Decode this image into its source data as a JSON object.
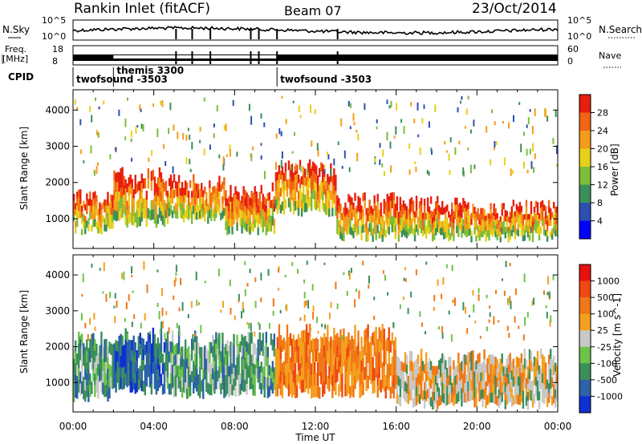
{
  "header": {
    "station": "Rankin Inlet (fitACF)",
    "beam": "Beam 07",
    "date": "23/Oct/2014"
  },
  "top_panels": {
    "nsky_label": "N.Sky",
    "nsearch_label": "N.Search",
    "nsky_ticks": [
      "10^5",
      "10^0"
    ],
    "nsearch_ticks": [
      "10^5",
      "10^0"
    ],
    "freq_label_1": "Freq.",
    "freq_label_2": "[MHz]",
    "freq_ticks": [
      "18",
      "8"
    ],
    "nave_label": "Nave",
    "nave_ticks": [
      "60",
      "0"
    ],
    "cpid_label": "CPID",
    "cpid_segments": [
      {
        "name": "twofsound -3503",
        "start_h": 0.0,
        "end_h": 2.0
      },
      {
        "name": "themis 3300",
        "start_h": 2.0,
        "end_h": 10.1
      },
      {
        "name": "twofsound -3503",
        "start_h": 10.1,
        "end_h": 24.0
      }
    ]
  },
  "chart_data": [
    {
      "type": "heatmap",
      "panel": "power",
      "ylabel": "Slant Range [km]",
      "xlabel": "Time UT",
      "x_ticks": [
        "00:00",
        "04:00",
        "08:00",
        "12:00",
        "16:00",
        "20:00",
        "00:00"
      ],
      "xlim_hours": [
        0,
        24
      ],
      "y_ticks": [
        "1000",
        "2000",
        "3000",
        "4000"
      ],
      "ylim_km": [
        180,
        4560
      ],
      "colorbar": {
        "label": "Power [dB]",
        "ticks": [
          "4",
          "8",
          "12",
          "16",
          "20",
          "24",
          "28"
        ],
        "colors": [
          "#0000ff",
          "#2d4fb0",
          "#3b8f5a",
          "#7dbd3a",
          "#e8d01a",
          "#f59c1a",
          "#f06414",
          "#e81e0e"
        ]
      },
      "echo_bands": [
        {
          "start_h": 0.0,
          "end_h": 2.0,
          "low_km": 700,
          "high_km": 1600
        },
        {
          "start_h": 2.0,
          "end_h": 4.5,
          "low_km": 900,
          "high_km": 2200
        },
        {
          "start_h": 4.5,
          "end_h": 7.5,
          "low_km": 1000,
          "high_km": 2000
        },
        {
          "start_h": 7.5,
          "end_h": 10.0,
          "low_km": 700,
          "high_km": 1800
        },
        {
          "start_h": 10.0,
          "end_h": 13.0,
          "low_km": 1200,
          "high_km": 2400
        },
        {
          "start_h": 13.0,
          "end_h": 16.0,
          "low_km": 500,
          "high_km": 1500
        },
        {
          "start_h": 16.0,
          "end_h": 20.0,
          "low_km": 500,
          "high_km": 1400
        },
        {
          "start_h": 20.0,
          "end_h": 24.0,
          "low_km": 500,
          "high_km": 1300
        }
      ]
    },
    {
      "type": "heatmap",
      "panel": "velocity",
      "ylabel": "Slant Range [km]",
      "xlabel": "Time UT",
      "x_ticks": [
        "00:00",
        "04:00",
        "08:00",
        "12:00",
        "16:00",
        "20:00",
        "00:00"
      ],
      "xlim_hours": [
        0,
        24
      ],
      "y_ticks": [
        "1000",
        "2000",
        "3000",
        "4000"
      ],
      "ylim_km": [
        180,
        4560
      ],
      "colorbar": {
        "label": "Velocity [m s^-1]",
        "ticks": [
          "1000",
          "500",
          "100",
          "25",
          "-25",
          "-100",
          "-500",
          "-1000"
        ],
        "colors": [
          "#1030d0",
          "#2c62a8",
          "#3b8f5a",
          "#6cc44a",
          "#c8c8c8",
          "#f4a020",
          "#f07818",
          "#f04812",
          "#e81010"
        ]
      },
      "echo_bands": [
        {
          "start_h": 0.0,
          "end_h": 2.0,
          "low_km": 600,
          "high_km": 2200,
          "dominant": "green"
        },
        {
          "start_h": 2.0,
          "end_h": 4.5,
          "low_km": 800,
          "high_km": 2300,
          "dominant": "blue"
        },
        {
          "start_h": 4.5,
          "end_h": 10.0,
          "low_km": 700,
          "high_km": 2200,
          "dominant": "green"
        },
        {
          "start_h": 10.0,
          "end_h": 16.0,
          "low_km": 700,
          "high_km": 2400,
          "dominant": "orange"
        },
        {
          "start_h": 16.0,
          "end_h": 24.0,
          "low_km": 400,
          "high_km": 1700,
          "dominant": "grey"
        }
      ]
    }
  ]
}
